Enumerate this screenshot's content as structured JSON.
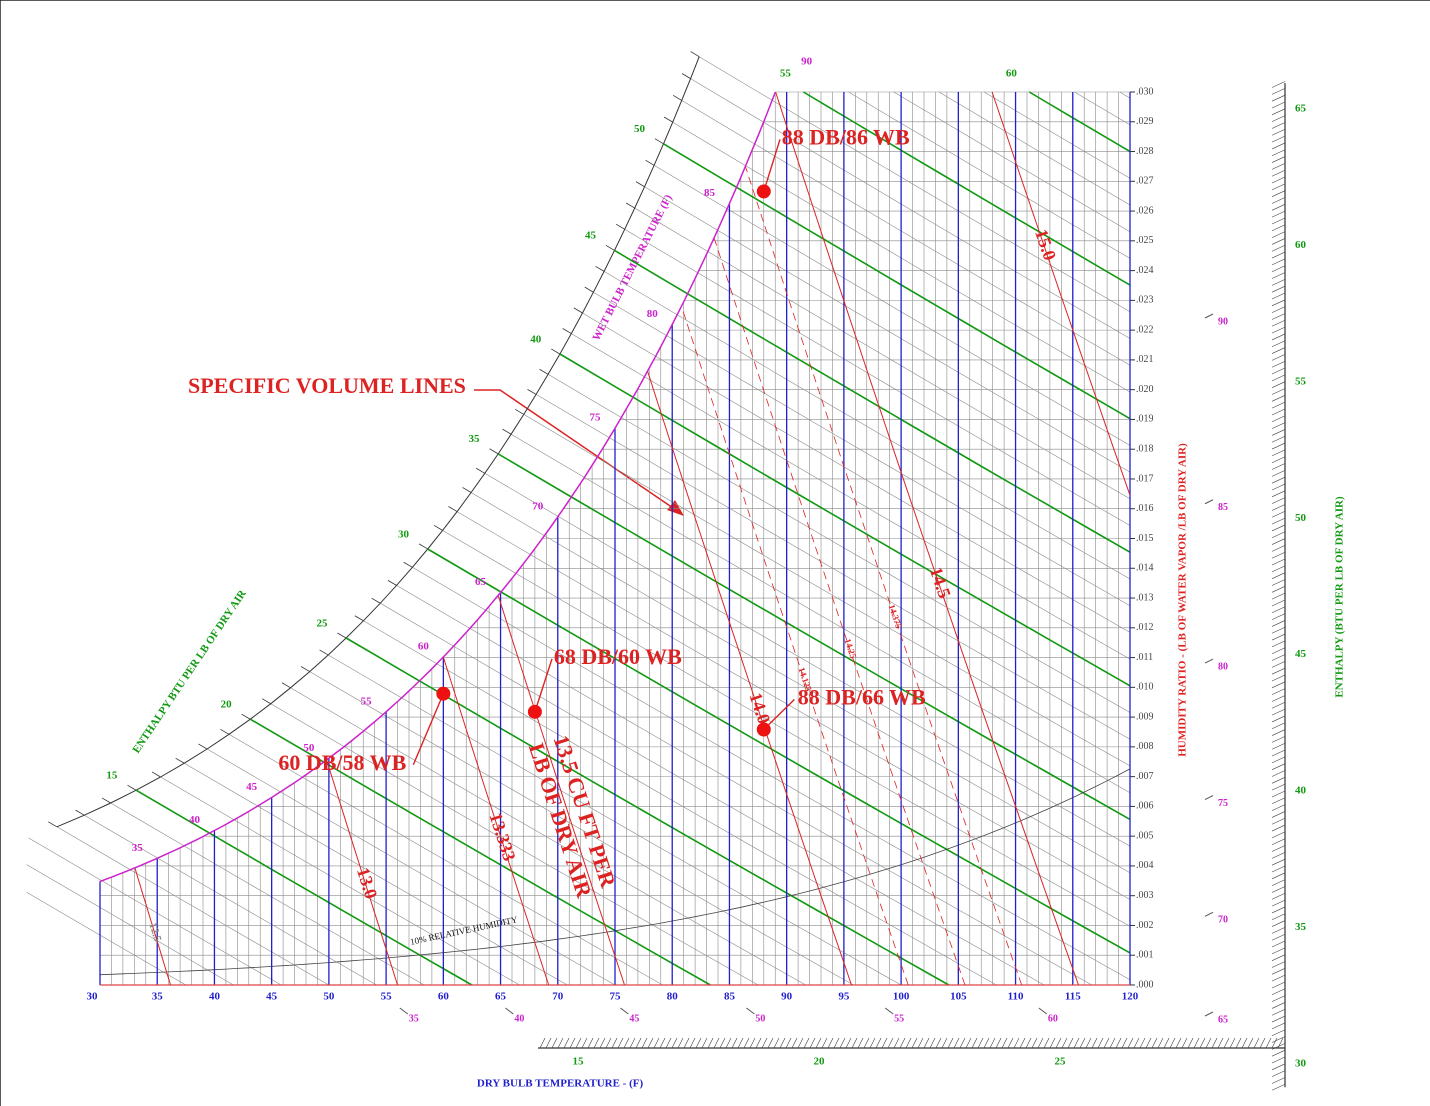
{
  "chart_data": {
    "type": "psychrometric",
    "xlabel": "DRY BULB TEMPERATURE - (F)",
    "ylabel": "HUMIDITY RATIO - (LB OF WATER VAPOR /LB OF DRY AIR)",
    "xlim": [
      30,
      120
    ],
    "xticks": [
      30,
      35,
      40,
      45,
      50,
      55,
      60,
      65,
      70,
      75,
      80,
      85,
      90,
      95,
      100,
      105,
      110,
      115,
      120
    ],
    "ylim": [
      0,
      0.03
    ],
    "yticks": [
      {
        "value": 0,
        "label": ".000"
      },
      {
        "value": 0.001,
        "label": ".001"
      },
      {
        "value": 0.002,
        "label": ".002"
      },
      {
        "value": 0.003,
        "label": ".003"
      },
      {
        "value": 0.004,
        "label": ".004"
      },
      {
        "value": 0.005,
        "label": ".005"
      },
      {
        "value": 0.006,
        "label": ".006"
      },
      {
        "value": 0.007,
        "label": ".007"
      },
      {
        "value": 0.008,
        "label": ".008"
      },
      {
        "value": 0.009,
        "label": ".009"
      },
      {
        "value": 0.01,
        "label": ".010"
      },
      {
        "value": 0.011,
        "label": ".011"
      },
      {
        "value": 0.012,
        "label": ".012"
      },
      {
        "value": 0.013,
        "label": ".013"
      },
      {
        "value": 0.014,
        "label": ".014"
      },
      {
        "value": 0.015,
        "label": ".015"
      },
      {
        "value": 0.016,
        "label": ".016"
      },
      {
        "value": 0.017,
        "label": ".017"
      },
      {
        "value": 0.018,
        "label": ".018"
      },
      {
        "value": 0.019,
        "label": ".019"
      },
      {
        "value": 0.02,
        "label": ".020"
      },
      {
        "value": 0.021,
        "label": ".021"
      },
      {
        "value": 0.022,
        "label": ".022"
      },
      {
        "value": 0.023,
        "label": ".023"
      },
      {
        "value": 0.024,
        "label": ".024"
      },
      {
        "value": 0.025,
        "label": ".025"
      },
      {
        "value": 0.026,
        "label": ".026"
      },
      {
        "value": 0.027,
        "label": ".027"
      },
      {
        "value": 0.028,
        "label": ".028"
      },
      {
        "value": 0.029,
        "label": ".029"
      },
      {
        "value": 0.03,
        "label": ".030"
      }
    ],
    "wet_bulb": {
      "label": "WET BULB TEMPERATURE (F)",
      "ticks": [
        35,
        40,
        45,
        50,
        55,
        60,
        65,
        70,
        75,
        80,
        85,
        90
      ]
    },
    "enthalpy": {
      "label": "ENTHALPY BTU PER LB OF DRY AIR",
      "ticks": [
        15,
        20,
        25,
        30,
        35,
        40,
        45,
        50,
        55,
        60
      ]
    },
    "enthalpy_right": {
      "label": "ENTHALPY (BTU PER LB OF DRY AIR)",
      "ticks": [
        30,
        35,
        40,
        45,
        50,
        55,
        60,
        65
      ]
    },
    "enthalpy_bottom": {
      "ticks": [
        15,
        20,
        25
      ]
    },
    "right_scale": {
      "ticks": [
        65,
        70,
        75,
        80,
        85,
        90
      ]
    },
    "bottom_scale": {
      "ticks": [
        35,
        40,
        45,
        50,
        55,
        60
      ]
    },
    "specific_volume": {
      "annotation": "SPECIFIC VOLUME LINES",
      "values": [
        12.5,
        13,
        13.333,
        13.5,
        14,
        14.125,
        14.25,
        14.375,
        14.5,
        15
      ],
      "value_labels": [
        "12.5",
        "13.0",
        "13.333",
        "13.5 CU FT PER",
        "14.0",
        "14.125",
        "14.25",
        "14.375",
        "14.5",
        "15.0"
      ],
      "dashed": [
        false,
        false,
        false,
        false,
        false,
        true,
        true,
        true,
        false,
        false
      ],
      "unit_note": "LB OF DRY AIR"
    },
    "rh_line": {
      "value": 10,
      "label": "10% RELATIVE HUMIDITY"
    },
    "points": [
      {
        "label": "88 DB/86 WB",
        "db": 88,
        "wb": 86
      },
      {
        "label": "68 DB/60 WB",
        "db": 68,
        "wb": 60
      },
      {
        "label": "88 DB/66 WB",
        "db": 88,
        "wb": 66
      },
      {
        "label": "60 DB/58 WB",
        "db": 60,
        "wb": 58
      }
    ],
    "colors": {
      "dry_bulb": "#1f1fcc",
      "enthalpy": "#119911",
      "wet_bulb": "#cc22cc",
      "volume": "#dd2222",
      "grid": "#8a8a8a"
    }
  }
}
